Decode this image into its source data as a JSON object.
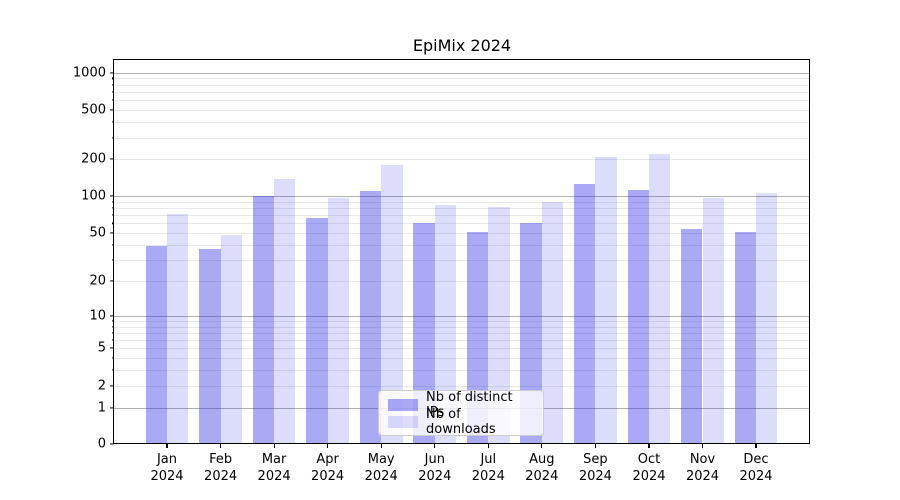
{
  "title": "EpiMix 2024",
  "chart_data": {
    "type": "bar",
    "title": "EpiMix 2024",
    "categories": [
      "Jan 2024",
      "Feb 2024",
      "Mar 2024",
      "Apr 2024",
      "May 2024",
      "Jun 2024",
      "Jul 2024",
      "Aug 2024",
      "Sep 2024",
      "Oct 2024",
      "Nov 2024",
      "Dec 2024"
    ],
    "series": [
      {
        "name": "Nb of distinct IPs",
        "color": "rgba(40,40,228,0.40)",
        "values": [
          39,
          37,
          100,
          66,
          110,
          60,
          51,
          60,
          125,
          113,
          54,
          51
        ]
      },
      {
        "name": "Nb of downloads",
        "color": "rgba(40,40,228,0.16)",
        "values": [
          72,
          48,
          138,
          96,
          178,
          85,
          82,
          90,
          210,
          220,
          96,
          106
        ]
      }
    ],
    "xlabel": "",
    "ylabel": "",
    "y_axis": {
      "scale": "log1p",
      "ylim": [
        0,
        1280
      ],
      "labeled_ticks": [
        0,
        1,
        2,
        5,
        10,
        20,
        50,
        100,
        200,
        500,
        1000
      ],
      "major_gridlines": [
        1,
        10,
        100,
        1000
      ],
      "minor_gridlines": [
        2,
        3,
        4,
        5,
        6,
        7,
        8,
        9,
        20,
        30,
        40,
        50,
        60,
        70,
        80,
        90,
        200,
        300,
        400,
        500,
        600,
        700,
        800,
        900
      ]
    },
    "grid": true,
    "legend_position": "lower center",
    "colors": {
      "grid_major": "#b0b0b0",
      "grid_minor": "#e8e8e8",
      "spine": "#000000",
      "background": "#ffffff"
    }
  }
}
